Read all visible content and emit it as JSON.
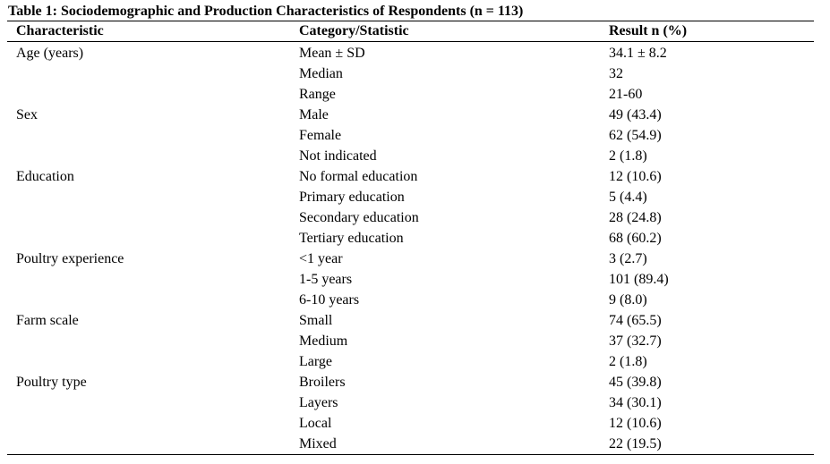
{
  "table": {
    "title": "Table 1: Sociodemographic and Production Characteristics of Respondents (n = 113)",
    "headers": [
      "Characteristic",
      "Category/Statistic",
      "Result n (%)"
    ],
    "rows": [
      [
        "Age (years)",
        "Mean ± SD",
        "34.1 ± 8.2"
      ],
      [
        "",
        "Median",
        "32"
      ],
      [
        "",
        "Range",
        "21-60"
      ],
      [
        "Sex",
        "Male",
        "49 (43.4)"
      ],
      [
        "",
        "Female",
        "62 (54.9)"
      ],
      [
        "",
        "Not indicated",
        "2 (1.8)"
      ],
      [
        "Education",
        "No formal education",
        "12 (10.6)"
      ],
      [
        "",
        "Primary education",
        "5 (4.4)"
      ],
      [
        "",
        "Secondary education",
        "28 (24.8)"
      ],
      [
        "",
        "Tertiary education",
        "68 (60.2)"
      ],
      [
        "Poultry experience",
        "<1 year",
        "3 (2.7)"
      ],
      [
        "",
        "1-5 years",
        "101 (89.4)"
      ],
      [
        "",
        "6-10 years",
        "9 (8.0)"
      ],
      [
        "Farm scale",
        "Small",
        "74 (65.5)"
      ],
      [
        "",
        "Medium",
        "37 (32.7)"
      ],
      [
        "",
        "Large",
        "2 (1.8)"
      ],
      [
        "Poultry type",
        "Broilers",
        "45 (39.8)"
      ],
      [
        "",
        "Layers",
        "34 (30.1)"
      ],
      [
        "",
        "Local",
        "12 (10.6)"
      ],
      [
        "",
        "Mixed",
        "22 (19.5)"
      ]
    ]
  }
}
